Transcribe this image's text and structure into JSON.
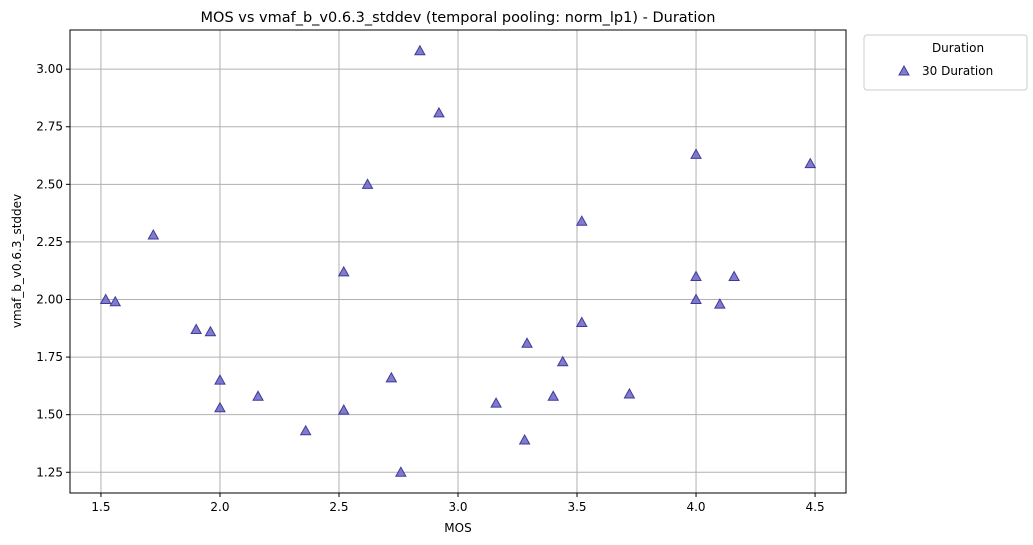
{
  "chart_data": {
    "type": "scatter",
    "title": "MOS vs vmaf_b_v0.6.3_stddev (temporal pooling: norm_lp1) - Duration",
    "xlabel": "MOS",
    "ylabel": "vmaf_b_v0.6.3_stddev",
    "xlim": [
      1.37,
      4.63
    ],
    "ylim": [
      1.16,
      3.17
    ],
    "xticks": [
      1.5,
      2.0,
      2.5,
      3.0,
      3.5,
      4.0,
      4.5
    ],
    "xtick_labels": [
      "1.5",
      "2.0",
      "2.5",
      "3.0",
      "3.5",
      "4.0",
      "4.5"
    ],
    "yticks": [
      1.25,
      1.5,
      1.75,
      2.0,
      2.25,
      2.5,
      2.75,
      3.0
    ],
    "ytick_labels": [
      "1.25",
      "1.50",
      "1.75",
      "2.00",
      "2.25",
      "2.50",
      "2.75",
      "3.00"
    ],
    "grid": true,
    "legend": {
      "title": "Duration",
      "placement": "outside-top-right",
      "entries": [
        {
          "label": "30 Duration",
          "marker": "triangle",
          "color": "#6a64c4"
        }
      ]
    },
    "series": [
      {
        "name": "30 Duration",
        "marker": "triangle",
        "color": "#6a64c4",
        "edge_color": "#3f3a9a",
        "points": [
          {
            "x": 1.52,
            "y": 2.0
          },
          {
            "x": 1.56,
            "y": 1.99
          },
          {
            "x": 1.72,
            "y": 2.28
          },
          {
            "x": 1.9,
            "y": 1.87
          },
          {
            "x": 1.96,
            "y": 1.86
          },
          {
            "x": 2.0,
            "y": 1.65
          },
          {
            "x": 2.0,
            "y": 1.53
          },
          {
            "x": 2.16,
            "y": 1.58
          },
          {
            "x": 2.36,
            "y": 1.43
          },
          {
            "x": 2.52,
            "y": 2.12
          },
          {
            "x": 2.52,
            "y": 1.52
          },
          {
            "x": 2.62,
            "y": 2.5
          },
          {
            "x": 2.72,
            "y": 1.66
          },
          {
            "x": 2.76,
            "y": 1.25
          },
          {
            "x": 2.84,
            "y": 3.08
          },
          {
            "x": 2.92,
            "y": 2.81
          },
          {
            "x": 3.16,
            "y": 1.55
          },
          {
            "x": 3.28,
            "y": 1.39
          },
          {
            "x": 3.29,
            "y": 1.81
          },
          {
            "x": 3.4,
            "y": 1.58
          },
          {
            "x": 3.44,
            "y": 1.73
          },
          {
            "x": 3.52,
            "y": 2.34
          },
          {
            "x": 3.52,
            "y": 1.9
          },
          {
            "x": 3.72,
            "y": 1.59
          },
          {
            "x": 4.0,
            "y": 2.63
          },
          {
            "x": 4.0,
            "y": 2.1
          },
          {
            "x": 4.0,
            "y": 2.0
          },
          {
            "x": 4.1,
            "y": 1.98
          },
          {
            "x": 4.16,
            "y": 2.1
          },
          {
            "x": 4.48,
            "y": 2.59
          }
        ]
      }
    ]
  }
}
